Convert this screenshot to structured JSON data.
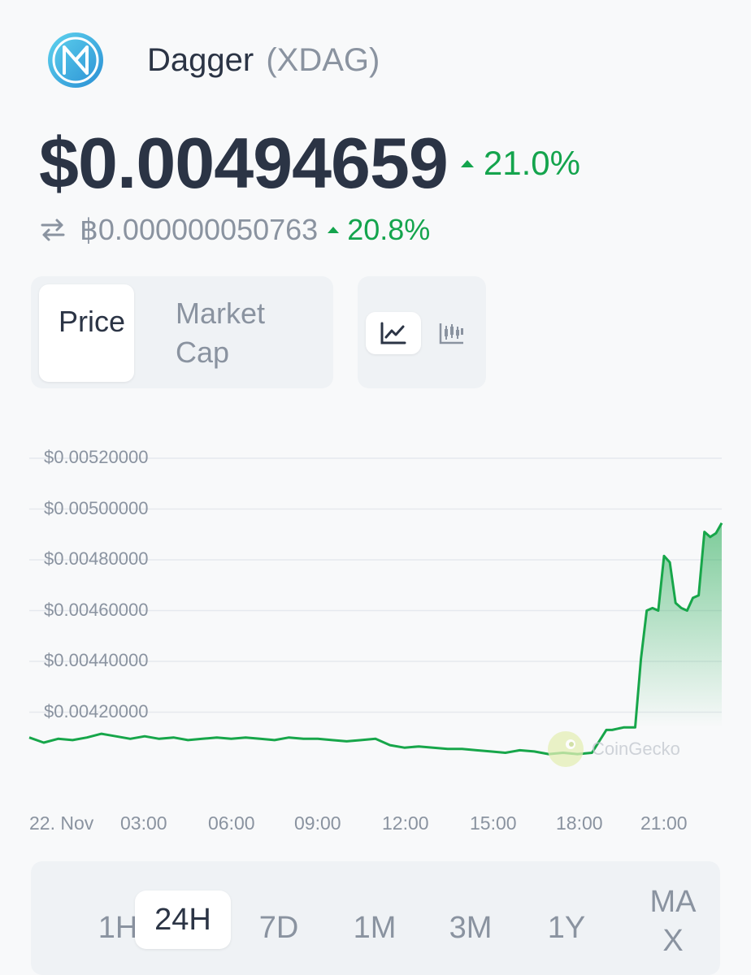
{
  "coin": {
    "name": "Dagger",
    "symbol": "(XDAG)",
    "logo_icon": "dagger-logo-icon"
  },
  "price": {
    "usd": "$0.00494659",
    "usd_change": "21.0%",
    "btc": "฿0.000000050763",
    "btc_change": "20.8%"
  },
  "colors": {
    "up": "#14a44d",
    "text": "#2b3445",
    "muted": "#8a93a0",
    "line": "#17a64a"
  },
  "chart_type_toggle": {
    "items": [
      {
        "label": "Price",
        "active": true
      },
      {
        "label": "Market Cap",
        "active": false
      }
    ]
  },
  "view_toggle": {
    "items": [
      {
        "icon": "line-chart-icon",
        "active": true
      },
      {
        "icon": "candlestick-chart-icon",
        "active": false
      }
    ]
  },
  "chart_data": {
    "type": "area",
    "x_ticks": [
      "22. Nov",
      "03:00",
      "06:00",
      "09:00",
      "12:00",
      "15:00",
      "18:00",
      "21:00"
    ],
    "y_ticks": [
      "$0.00520000",
      "$0.00500000",
      "$0.00480000",
      "$0.00460000",
      "$0.00440000",
      "$0.00420000"
    ],
    "ylim": [
      0.0041,
      0.0052
    ],
    "xlim": [
      0,
      24
    ],
    "grid": true,
    "watermark": "CoinGecko",
    "x": [
      0,
      0.5,
      1,
      1.5,
      2,
      2.5,
      3,
      3.5,
      4,
      4.5,
      5,
      5.5,
      6,
      6.5,
      7,
      7.5,
      8,
      8.5,
      9,
      9.5,
      10,
      10.5,
      11,
      11.5,
      12,
      12.5,
      13,
      13.5,
      14,
      14.5,
      15,
      15.5,
      16,
      16.5,
      17,
      17.5,
      18,
      18.5,
      19,
      19.5,
      20,
      20.2,
      20.4,
      20.6,
      20.8,
      21,
      21.2,
      21.4,
      21.6,
      21.8,
      22,
      22.2,
      22.4,
      22.6,
      22.8,
      23,
      23.2,
      23.4,
      23.6,
      23.8,
      24
    ],
    "values": [
      0.0041,
      0.00408,
      0.004095,
      0.00409,
      0.0041,
      0.004115,
      0.004105,
      0.004095,
      0.004105,
      0.004095,
      0.0041,
      0.00409,
      0.004095,
      0.0041,
      0.004095,
      0.0041,
      0.004095,
      0.00409,
      0.0041,
      0.004095,
      0.004095,
      0.00409,
      0.004085,
      0.00409,
      0.004095,
      0.00407,
      0.00406,
      0.004065,
      0.00406,
      0.004055,
      0.004055,
      0.00405,
      0.004045,
      0.00404,
      0.00405,
      0.004045,
      0.004035,
      0.00404,
      0.004035,
      0.00404,
      0.00413,
      0.00413,
      0.004135,
      0.00414,
      0.00414,
      0.00414,
      0.00441,
      0.0046,
      0.00461,
      0.0046,
      0.004815,
      0.00479,
      0.00463,
      0.00461,
      0.0046,
      0.00465,
      0.00466,
      0.00491,
      0.00489,
      0.004905,
      0.004945
    ]
  },
  "range": {
    "items": [
      "1H",
      "24H",
      "7D",
      "1M",
      "3M",
      "1Y"
    ],
    "max_label": "MAX",
    "active": "24H"
  }
}
